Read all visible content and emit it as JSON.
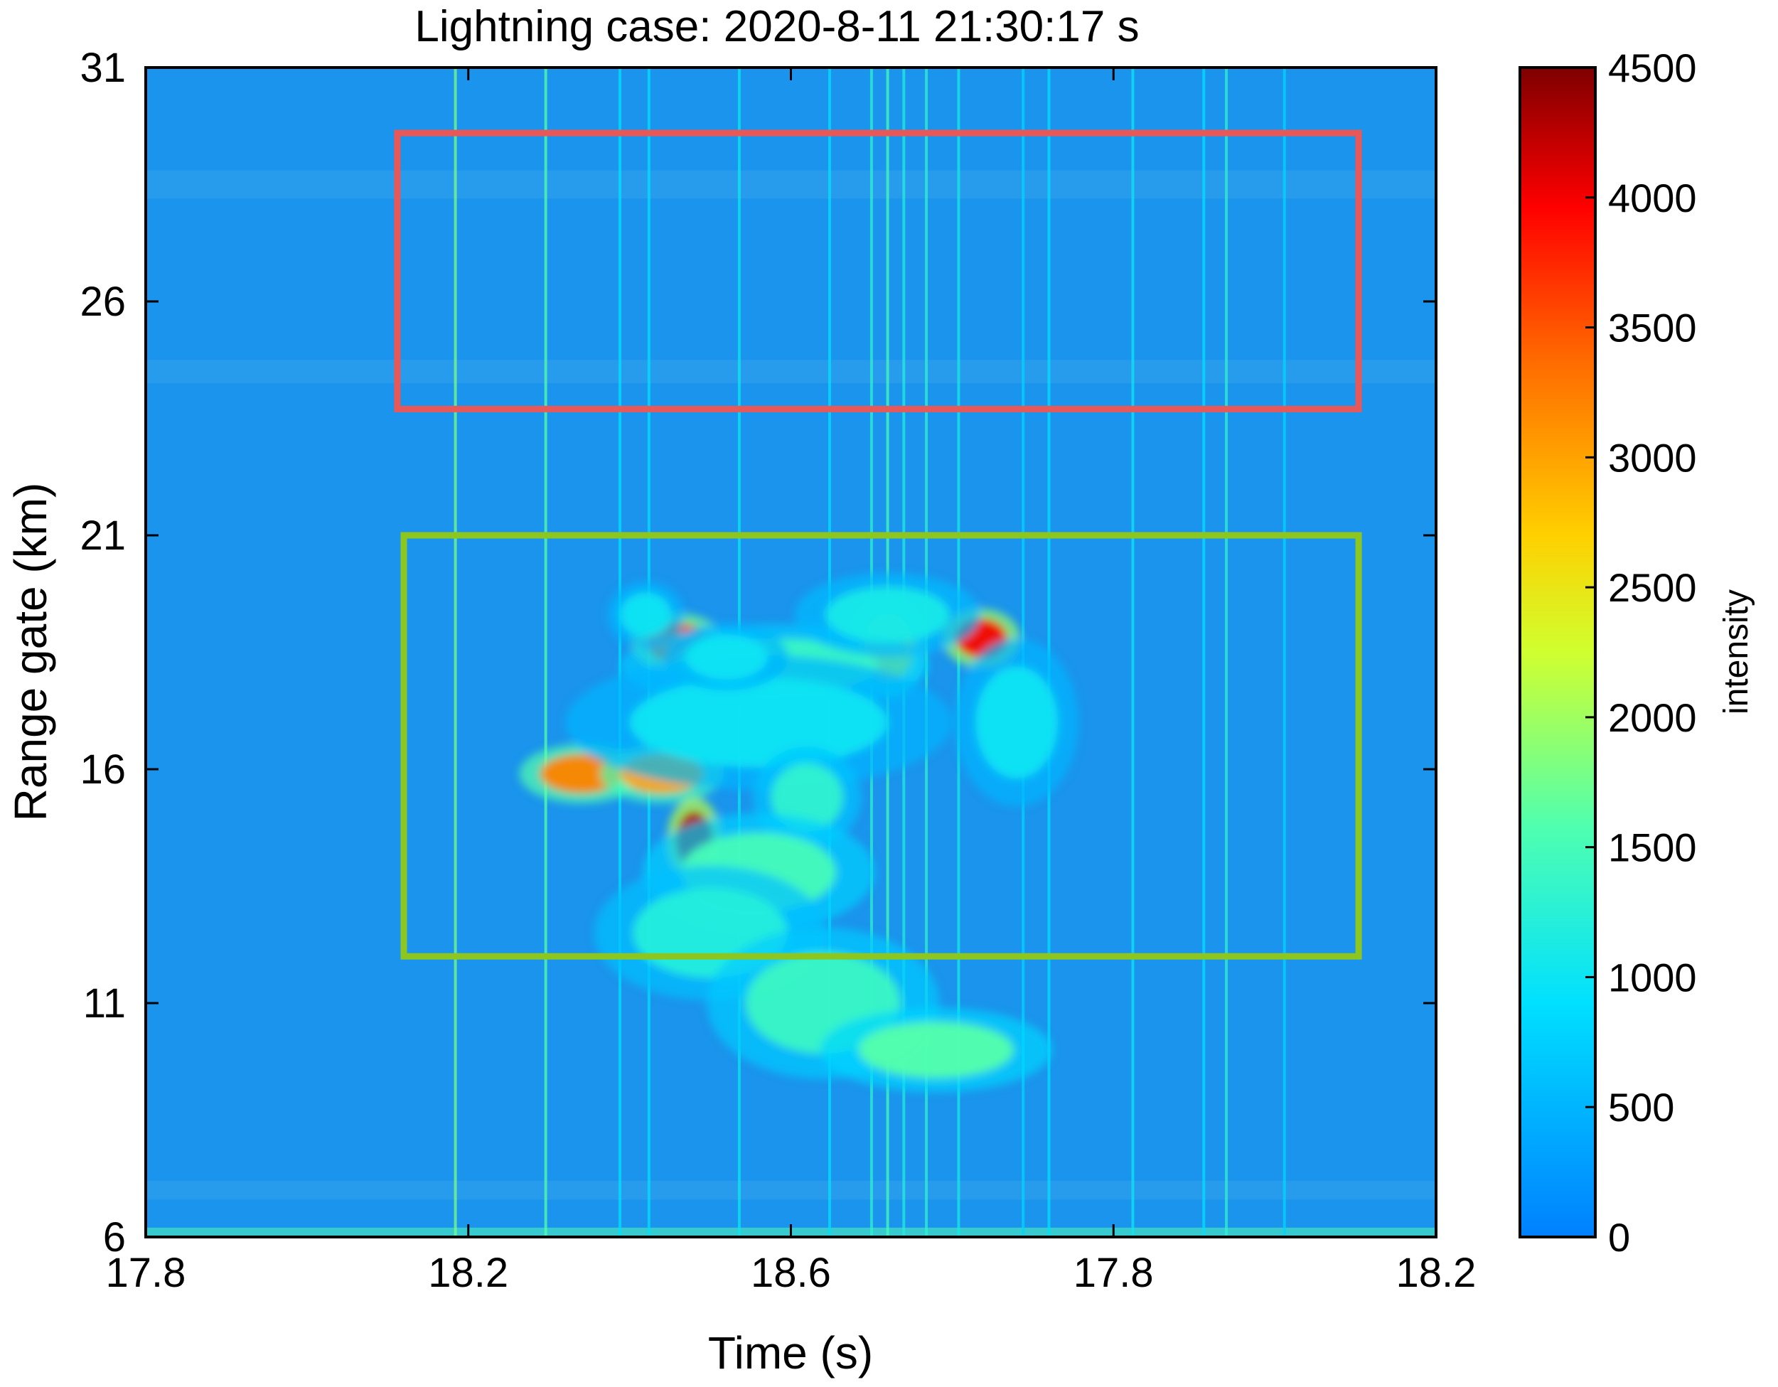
{
  "chart_data": {
    "type": "heatmap",
    "title": "Lightning case: 2020-8-11 21:30:17 s",
    "xlabel": "Time (s)",
    "ylabel": "Range gate (km)",
    "x_tick_labels": [
      "17.8",
      "18.2",
      "18.6",
      "17.8",
      "18.2"
    ],
    "y_ticks": [
      6,
      11,
      16,
      21,
      26,
      31
    ],
    "y_tick_labels": [
      "6",
      "11",
      "16",
      "21",
      "26",
      "31"
    ],
    "ylim": [
      6,
      31
    ],
    "colorbar": {
      "label": "intensity",
      "range": [
        0,
        4500
      ],
      "ticks": [
        0,
        500,
        1000,
        1500,
        2000,
        2500,
        3000,
        3500,
        4000,
        4500
      ],
      "tick_labels": [
        "0",
        "500",
        "1000",
        "1500",
        "2000",
        "2500",
        "3000",
        "3500",
        "4000",
        "4500"
      ],
      "colormap": "jet"
    },
    "background_intensity": 250,
    "highlight_boxes": [
      {
        "name": "red-box",
        "color": "#e85858",
        "x_index_range": [
          0.78,
          3.76
        ],
        "y_range": [
          23.7,
          29.6
        ]
      },
      {
        "name": "green-box",
        "color": "#8cc61e",
        "x_index_range": [
          0.8,
          3.76
        ],
        "y_range": [
          12.0,
          21.0
        ]
      }
    ],
    "intensity_blobs": [
      {
        "x_index": 1.65,
        "y": 18.7,
        "intensity": 3600,
        "sx": 0.06,
        "sy": 0.35
      },
      {
        "x_index": 2.59,
        "y": 18.8,
        "intensity": 4000,
        "sx": 0.05,
        "sy": 0.35
      },
      {
        "x_index": 1.35,
        "y": 15.9,
        "intensity": 3200,
        "sx": 0.08,
        "sy": 0.35
      },
      {
        "x_index": 1.6,
        "y": 15.9,
        "intensity": 3000,
        "sx": 0.08,
        "sy": 0.35
      },
      {
        "x_index": 1.7,
        "y": 14.5,
        "intensity": 4300,
        "sx": 0.035,
        "sy": 0.5
      },
      {
        "x_index": 2.3,
        "y": 18.6,
        "intensity": 2400,
        "sx": 0.05,
        "sy": 0.6
      },
      {
        "x_index": 1.95,
        "y": 18.2,
        "intensity": 1400,
        "sx": 0.2,
        "sy": 0.5
      },
      {
        "x_index": 1.9,
        "y": 17.0,
        "intensity": 1000,
        "sx": 0.25,
        "sy": 0.8
      },
      {
        "x_index": 2.05,
        "y": 15.4,
        "intensity": 1300,
        "sx": 0.07,
        "sy": 0.6
      },
      {
        "x_index": 1.9,
        "y": 13.8,
        "intensity": 1500,
        "sx": 0.15,
        "sy": 0.7
      },
      {
        "x_index": 1.75,
        "y": 12.5,
        "intensity": 1200,
        "sx": 0.15,
        "sy": 0.8
      },
      {
        "x_index": 2.1,
        "y": 11.0,
        "intensity": 1400,
        "sx": 0.15,
        "sy": 0.9
      },
      {
        "x_index": 2.45,
        "y": 10.0,
        "intensity": 1600,
        "sx": 0.15,
        "sy": 0.5
      },
      {
        "x_index": 2.3,
        "y": 19.3,
        "intensity": 1100,
        "sx": 0.12,
        "sy": 0.5
      },
      {
        "x_index": 1.55,
        "y": 19.3,
        "intensity": 1000,
        "sx": 0.05,
        "sy": 0.4
      },
      {
        "x_index": 2.7,
        "y": 17.0,
        "intensity": 1000,
        "sx": 0.08,
        "sy": 1.0
      },
      {
        "x_index": 1.8,
        "y": 18.4,
        "intensity": 1000,
        "sx": 0.08,
        "sy": 0.4
      }
    ],
    "vertical_streaks": [
      {
        "x_index": 0.96,
        "intensity": 1800
      },
      {
        "x_index": 1.24,
        "intensity": 1600
      },
      {
        "x_index": 1.47,
        "intensity": 900
      },
      {
        "x_index": 1.56,
        "intensity": 900
      },
      {
        "x_index": 1.84,
        "intensity": 1000
      },
      {
        "x_index": 2.12,
        "intensity": 900
      },
      {
        "x_index": 2.25,
        "intensity": 1300
      },
      {
        "x_index": 2.3,
        "intensity": 1500
      },
      {
        "x_index": 2.35,
        "intensity": 1200
      },
      {
        "x_index": 2.42,
        "intensity": 1300
      },
      {
        "x_index": 2.52,
        "intensity": 1100
      },
      {
        "x_index": 2.72,
        "intensity": 800
      },
      {
        "x_index": 2.8,
        "intensity": 900
      },
      {
        "x_index": 3.06,
        "intensity": 1000
      },
      {
        "x_index": 3.28,
        "intensity": 900
      },
      {
        "x_index": 3.35,
        "intensity": 1300
      },
      {
        "x_index": 3.53,
        "intensity": 800
      }
    ]
  }
}
